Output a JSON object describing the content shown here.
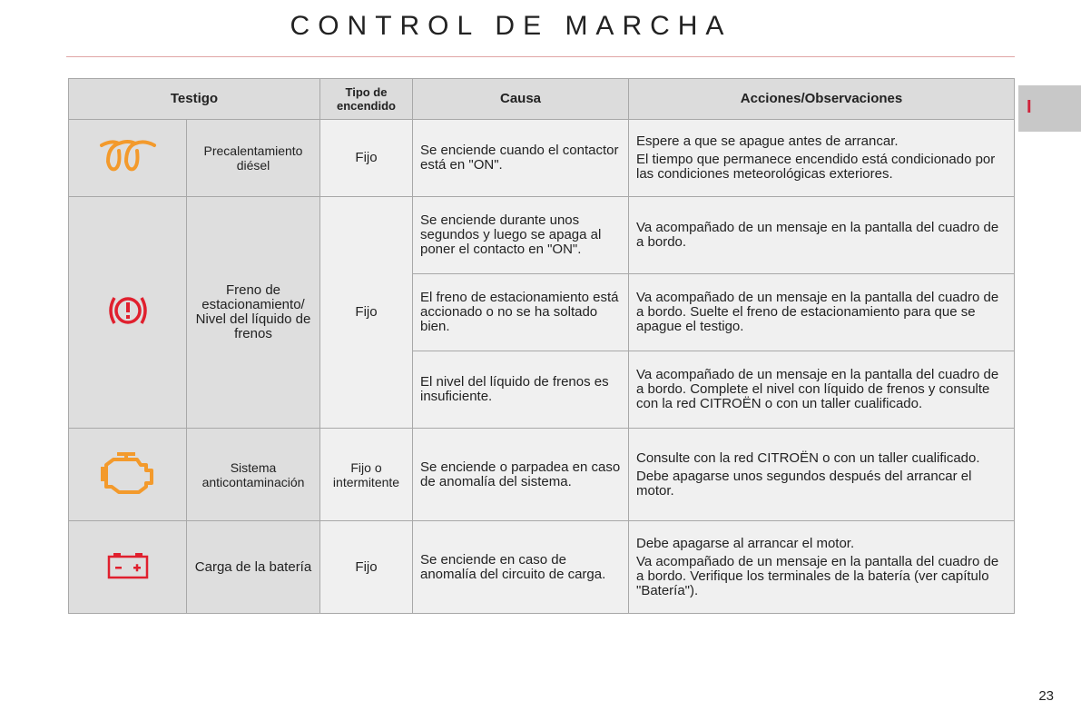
{
  "title": "CONTROL DE MARCHA",
  "section_tab": "I",
  "page_number": "23",
  "headers": [
    "Testigo",
    "Tipo de encendido",
    "Causa",
    "Acciones/Observaciones"
  ],
  "rows": [
    {
      "icon": "preheating-coil-icon",
      "name": "Precalentamiento diésel",
      "type": "Fijo",
      "cause": "Se enciende cuando el contactor está en \"ON\".",
      "actions": [
        "Espere a que se apague antes de arrancar.",
        "El tiempo que permanece encendido está condicionado por las condiciones meteorológicas exteriores."
      ]
    },
    {
      "icon": "parking-brake-icon",
      "name": "Freno de estacionamiento/ Nivel del líquido de frenos",
      "type": "Fijo",
      "causes": [
        {
          "cause": "Se enciende durante unos segundos y luego se apaga al poner el contacto en \"ON\".",
          "actions": "Va acompañado de un mensaje en la pantalla del cuadro de a bordo."
        },
        {
          "cause": "El freno de estacionamiento está accionado o no se ha soltado bien.",
          "actions": "Va acompañado de un mensaje en la pantalla del cuadro de a bordo. Suelte el freno de estacionamiento para que se apague el testigo."
        },
        {
          "cause": "El nivel del líquido de frenos es insuficiente.",
          "actions": "Va acompañado de un mensaje en la pantalla del cuadro de a bordo. Complete el nivel con líquido de frenos y consulte con la red CITROËN o con un taller cualificado."
        }
      ]
    },
    {
      "icon": "engine-check-icon",
      "name": "Sistema anticontaminación",
      "type": "Fijo o intermitente",
      "cause": "Se enciende o parpadea en caso de anomalía del sistema.",
      "actions": [
        "Consulte con la red CITROËN o con un taller cualificado.",
        "Debe apagarse unos segundos después del arrancar el motor."
      ]
    },
    {
      "icon": "battery-icon",
      "name": "Carga de la batería",
      "type": "Fijo",
      "cause": "Se enciende en caso de anomalía del circuito de carga.",
      "actions": [
        "Debe apagarse al arrancar el motor.",
        "Va acompañado de un mensaje en la pantalla del cuadro de a bordo. Verifique los terminales de la batería (ver capítulo \"Batería\")."
      ]
    }
  ],
  "colors": {
    "orange": "#f39a2c",
    "red": "#e0202e",
    "accent_red": "#d0243c"
  }
}
